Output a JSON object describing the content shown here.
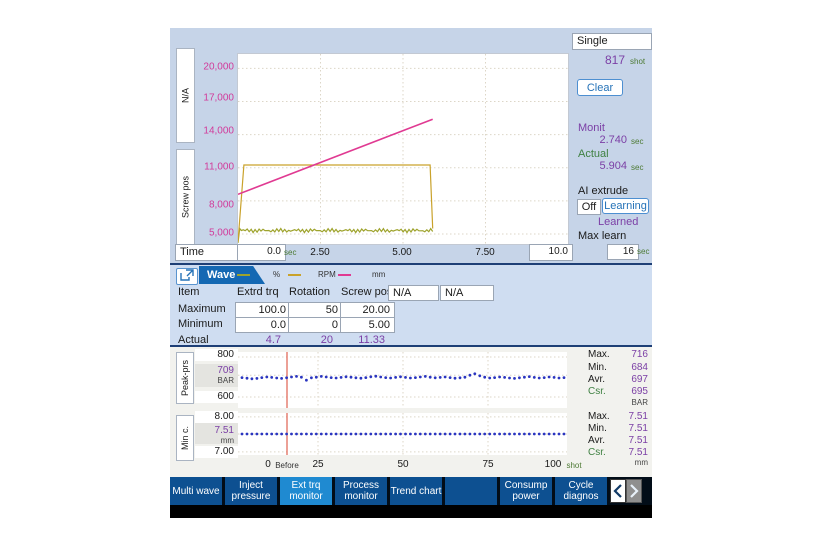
{
  "colors": {
    "accent_blue": "#2673b8",
    "magenta": "#d13a9a",
    "purple": "#7b3fa5",
    "green": "#3f8142",
    "olive": "#9ea32c",
    "amber": "#c9a22b",
    "dot_blue": "#2a35c0",
    "marker_red": "#e0614f"
  },
  "top": {
    "left_axis_boxes": [
      "N/A",
      "Screw pos"
    ],
    "y_ticks_display": [
      "20,000",
      "17,000",
      "14,000",
      "11,000",
      "8,000",
      "5,000"
    ],
    "time": {
      "label": "Time",
      "current": "0.0",
      "unit": "sec",
      "ticks": [
        "2.50",
        "5.00",
        "7.50"
      ],
      "end": "10.0"
    }
  },
  "right_panel": {
    "mode": "Single",
    "shot_count": "817",
    "shot_unit": "shot",
    "clear": "Clear",
    "monit_label": "Monit",
    "monit_value": "2.740",
    "actual_label": "Actual",
    "actual_value": "5.904",
    "sec_unit": "sec",
    "ai_title": "AI extrude",
    "off": "Off",
    "learning": "Learning",
    "learned": "Learned",
    "max_learn_label": "Max learn",
    "max_learn_value": "16"
  },
  "wave_panel": {
    "tab": "Wave",
    "legend": [
      {
        "label": "%"
      },
      {
        "label": "RPM"
      },
      {
        "label": "mm"
      }
    ],
    "table": {
      "item_label": "Item",
      "max_label": "Maximum",
      "min_label": "Minimum",
      "actual_label": "Actual",
      "headers": [
        "Extrd trq",
        "Rotation",
        "Screw pos",
        "N/A",
        "N/A"
      ],
      "maximum": [
        "100.0",
        "50",
        "20.00"
      ],
      "minimum": [
        "0.0",
        "0",
        "5.00"
      ],
      "actual": [
        "4.7",
        "20",
        "11.33"
      ]
    }
  },
  "trend": {
    "charts": [
      {
        "name": "Peak-prs",
        "y_labels": [
          "800",
          "709",
          "600"
        ],
        "unit": "BAR",
        "stats": {
          "max": {
            "label": "Max.",
            "value": "716"
          },
          "min": {
            "label": "Min.",
            "value": "684"
          },
          "avr": {
            "label": "Avr.",
            "value": "697"
          },
          "csr": {
            "label": "Csr.",
            "value": "695"
          }
        }
      },
      {
        "name": "Min c.",
        "y_labels": [
          "8.00",
          "7.51",
          "7.00"
        ],
        "unit": "mm",
        "stats": {
          "max": {
            "label": "Max.",
            "value": "7.51"
          },
          "min": {
            "label": "Min.",
            "value": "7.51"
          },
          "avr": {
            "label": "Avr.",
            "value": "7.51"
          },
          "csr": {
            "label": "Csr.",
            "value": "7.51"
          }
        }
      }
    ],
    "x_axis": {
      "zero": "0",
      "before": "Before",
      "t25": "25",
      "t50": "50",
      "t75": "75",
      "t100": "100",
      "unit": "shot"
    }
  },
  "tabs": {
    "items": [
      {
        "label": "Multi wave",
        "active": false
      },
      {
        "label": "Inject pressure",
        "active": false
      },
      {
        "label": "Ext trq monitor",
        "active": true
      },
      {
        "label": "Process monitor",
        "active": false
      },
      {
        "label": "Trend chart",
        "active": false
      },
      {
        "label": "",
        "active": false
      },
      {
        "label": "Consump power",
        "active": false
      },
      {
        "label": "Cycle diagnos",
        "active": false
      }
    ]
  },
  "chart_data": [
    {
      "type": "line",
      "title": "Extruder torque monitor wave",
      "x_unit": "sec",
      "x_range": [
        0,
        10
      ],
      "y_ticks_display": [
        "20,000",
        "17,000",
        "14,000",
        "11,000",
        "8,000",
        "5,000"
      ],
      "y_ticks_value": [
        20,
        17,
        14,
        11,
        8,
        5
      ],
      "value_scale": [
        4.1,
        21.3
      ],
      "monit_time_sec": 2.74,
      "actual_time_sec": 5.904,
      "shot": 817,
      "series": [
        {
          "name": "Extrd trq",
          "unit": "%",
          "color": "#9ea32c",
          "style": "noisy",
          "base": 5.32,
          "amp": 0.14,
          "t_start": 0.1,
          "t_end": 5.9,
          "actual": 4.7,
          "max": 100.0,
          "min": 0.0
        },
        {
          "name": "Rotation",
          "unit": "RPM",
          "color": "#c9a22b",
          "style": "poly",
          "points": [
            [
              0,
              4.3
            ],
            [
              0.18,
              11.25
            ],
            [
              5.82,
              11.25
            ],
            [
              5.9,
              5.5
            ]
          ],
          "actual": 20,
          "max": 50,
          "min": 0
        },
        {
          "name": "Screw pos",
          "unit": "mm",
          "color": "#e03a92",
          "style": "poly",
          "points": [
            [
              0,
              8.6
            ],
            [
              5.9,
              15.4
            ]
          ],
          "actual": 11.33,
          "max": 20.0,
          "min": 5.0
        }
      ]
    },
    {
      "type": "scatter",
      "name": "Peak-prs",
      "unit": "BAR",
      "x_unit": "shot",
      "x_ticks": [
        0,
        25,
        50,
        75,
        100
      ],
      "y_ticks": [
        800,
        709,
        600
      ],
      "ylim": [
        545,
        825
      ],
      "stats": {
        "max": 716,
        "min": 684,
        "avr": 697,
        "csr": 695
      },
      "values": [
        697,
        694,
        691,
        693,
        697,
        700,
        698,
        695,
        693,
        696,
        700,
        703,
        699,
        684,
        696,
        699,
        703,
        700,
        697,
        695,
        698,
        701,
        699,
        696,
        694,
        697,
        701,
        704,
        700,
        697,
        695,
        698,
        701,
        698,
        695,
        697,
        700,
        703,
        699,
        696,
        698,
        700,
        697,
        694,
        696,
        699,
        709,
        716,
        706,
        699,
        695,
        697,
        700,
        698,
        695,
        693,
        696,
        699,
        702,
        698,
        695,
        697,
        700,
        698,
        695,
        697
      ]
    },
    {
      "type": "scatter",
      "name": "Min c.",
      "unit": "mm",
      "x_unit": "shot",
      "x_ticks": [
        0,
        25,
        50,
        75,
        100
      ],
      "y_ticks": [
        8.0,
        7.51,
        7.0
      ],
      "ylim": [
        6.91,
        8.11
      ],
      "stats": {
        "max": 7.51,
        "min": 7.51,
        "avr": 7.51,
        "csr": 7.51
      },
      "constant_value": 7.51,
      "count": 66
    }
  ]
}
